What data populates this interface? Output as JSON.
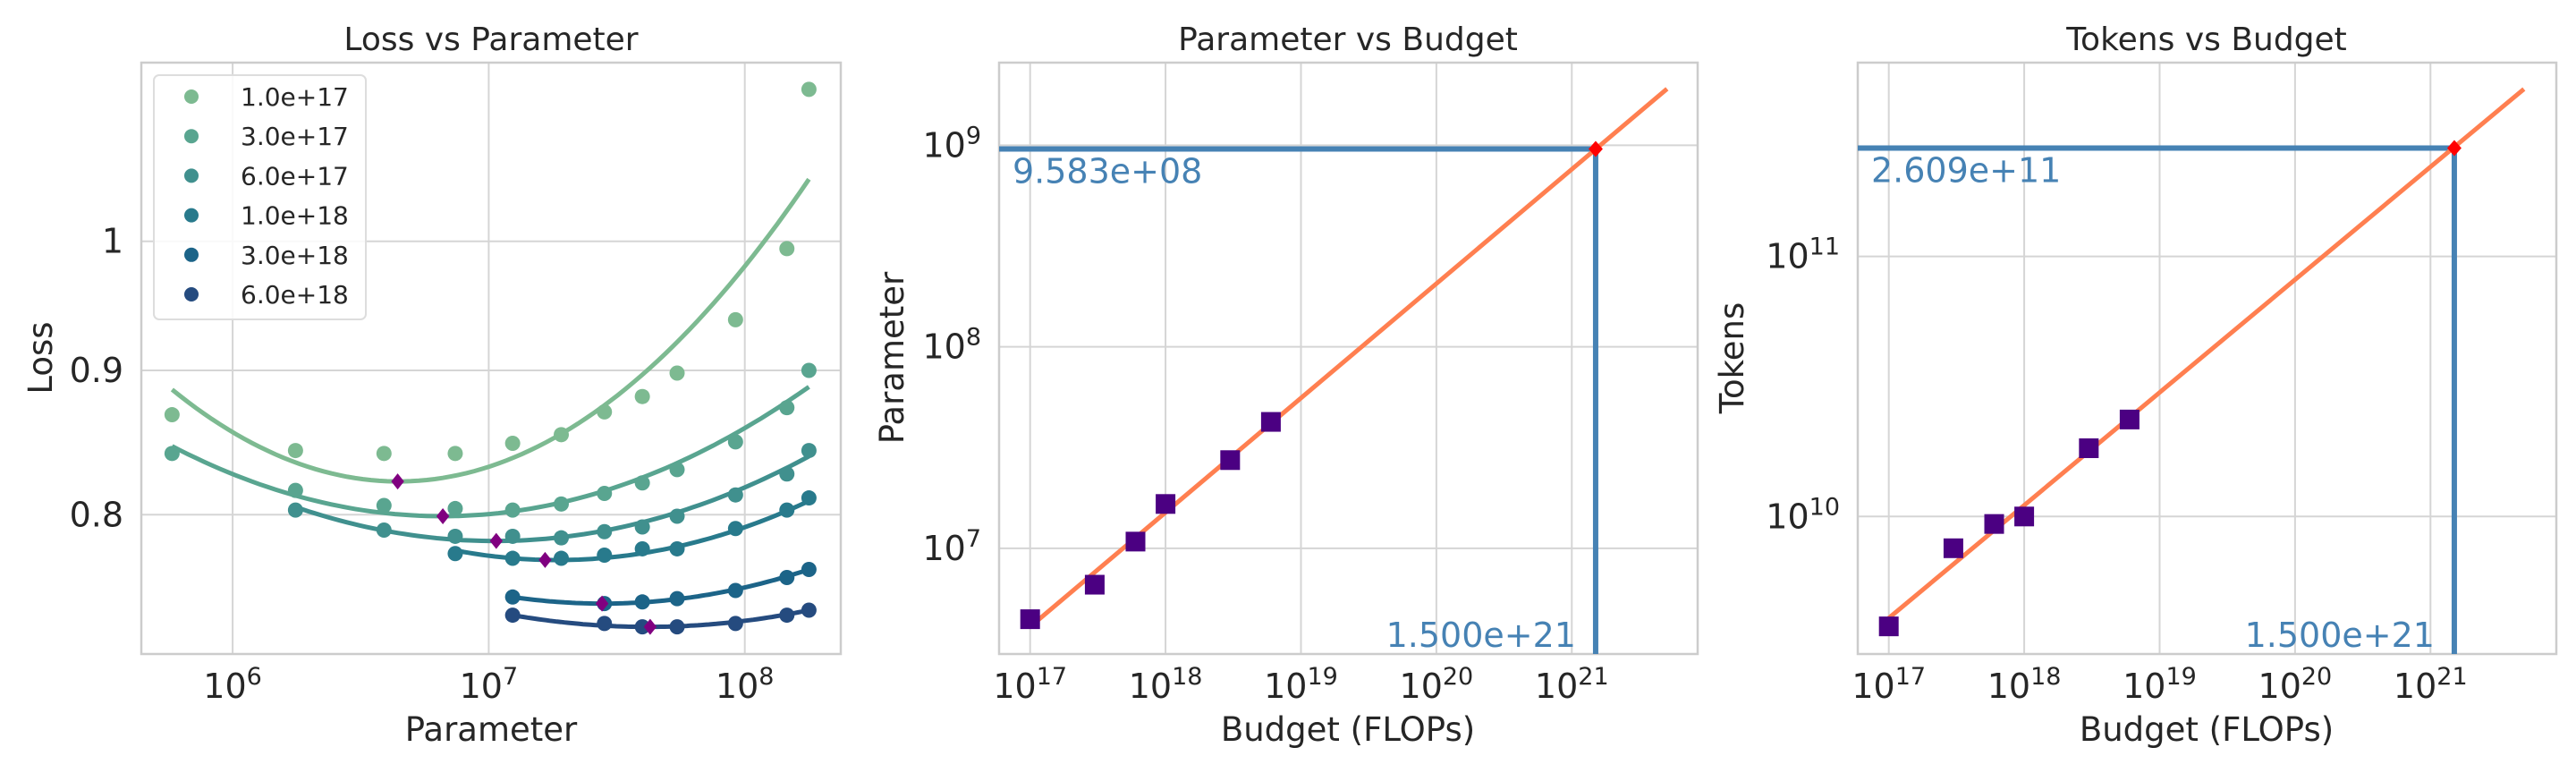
{
  "chart_data": [
    {
      "type": "scatter",
      "title": "Loss vs Parameter",
      "xlabel": "Parameter",
      "ylabel": "Loss",
      "xscale": "log",
      "yscale": "log",
      "xlim": [
        440000,
        237000000
      ],
      "ylim": [
        0.714,
        1.157
      ],
      "grid": true,
      "legend": {
        "position": "upper-left"
      },
      "xticks": [
        {
          "value": 1000000,
          "base": "10",
          "exp": "6"
        },
        {
          "value": 10000000,
          "base": "10",
          "exp": "7"
        },
        {
          "value": 100000000,
          "base": "10",
          "exp": "8"
        }
      ],
      "yticks": [
        {
          "value": 0.8,
          "label": "0.8"
        },
        {
          "value": 0.9,
          "label": "0.9"
        },
        {
          "value": 1.0,
          "label": "1"
        }
      ],
      "series": [
        {
          "name": "1.0e+17",
          "color": "#7dba91",
          "x": [
            580000,
            1760000,
            3900000,
            7400000,
            12400000,
            19200000,
            28300000,
            39800000,
            54400000,
            92000000,
            146000000,
            178000000
          ],
          "y": [
            0.868,
            0.843,
            0.841,
            0.841,
            0.848,
            0.854,
            0.87,
            0.881,
            0.898,
            0.938,
            0.994,
            1.132
          ],
          "fit": {
            "x": [
              580000,
              4410000,
              178000000
            ],
            "y": [
              0.886,
              0.822,
              1.052
            ]
          }
        },
        {
          "name": "3.0e+17",
          "color": "#59a590",
          "x": [
            580000,
            1760000,
            3900000,
            7400000,
            12400000,
            19200000,
            28300000,
            39800000,
            54400000,
            92000000,
            146000000,
            178000000
          ],
          "y": [
            0.841,
            0.816,
            0.806,
            0.804,
            0.803,
            0.807,
            0.814,
            0.821,
            0.83,
            0.849,
            0.873,
            0.9
          ],
          "fit": {
            "x": [
              580000,
              6620000,
              178000000
            ],
            "y": [
              0.846,
              0.799,
              0.888
            ]
          }
        },
        {
          "name": "6.0e+17",
          "color": "#40908e",
          "x": [
            1760000,
            3900000,
            7400000,
            12400000,
            19200000,
            28300000,
            39800000,
            54400000,
            92000000,
            146000000,
            178000000
          ],
          "y": [
            0.803,
            0.79,
            0.786,
            0.786,
            0.785,
            0.789,
            0.792,
            0.799,
            0.813,
            0.827,
            0.843
          ],
          "fit": {
            "x": [
              1760000,
              10700000,
              178000000
            ],
            "y": [
              0.805,
              0.783,
              0.839
            ]
          }
        },
        {
          "name": "1.0e+18",
          "color": "#287a8c",
          "x": [
            7400000,
            12400000,
            19200000,
            28300000,
            39800000,
            54400000,
            92000000,
            146000000,
            178000000
          ],
          "y": [
            0.775,
            0.772,
            0.772,
            0.774,
            0.778,
            0.778,
            0.791,
            0.803,
            0.811
          ],
          "fit": {
            "x": [
              7400000,
              16600000,
              178000000
            ],
            "y": [
              0.777,
              0.771,
              0.809
            ]
          }
        },
        {
          "name": "3.0e+18",
          "color": "#1c6488",
          "x": [
            12400000,
            28300000,
            39800000,
            54400000,
            92000000,
            146000000,
            178000000
          ],
          "y": [
            0.748,
            0.744,
            0.745,
            0.747,
            0.752,
            0.76,
            0.765
          ],
          "fit": {
            "x": [
              12400000,
              27700000,
              178000000
            ],
            "y": [
              0.748,
              0.744,
              0.765
            ]
          }
        },
        {
          "name": "6.0e+18",
          "color": "#254b7f",
          "x": [
            12400000,
            28300000,
            39800000,
            54400000,
            92000000,
            146000000,
            178000000
          ],
          "y": [
            0.737,
            0.732,
            0.73,
            0.73,
            0.732,
            0.737,
            0.74
          ],
          "fit": {
            "x": [
              12400000,
              42700000,
              178000000
            ],
            "y": [
              0.737,
              0.73,
              0.74
            ]
          }
        }
      ],
      "minima": {
        "color": "#800080",
        "x": [
          4410000,
          6620000,
          10700000,
          16600000,
          27700000,
          42700000
        ],
        "y": [
          0.822,
          0.799,
          0.783,
          0.771,
          0.744,
          0.73
        ]
      }
    },
    {
      "type": "scatter",
      "title": "Parameter vs Budget",
      "xlabel": "Budget (FLOPs)",
      "ylabel": "Parameter",
      "xscale": "log",
      "yscale": "log",
      "xlim": [
        5.9e+16,
        8.5e+21
      ],
      "ylim": [
        2990000,
        2570000000
      ],
      "grid": true,
      "xticks": [
        {
          "value": 1e+17,
          "base": "10",
          "exp": "17"
        },
        {
          "value": 1e+18,
          "base": "10",
          "exp": "18"
        },
        {
          "value": 1e+19,
          "base": "10",
          "exp": "19"
        },
        {
          "value": 1e+20,
          "base": "10",
          "exp": "20"
        },
        {
          "value": 1e+21,
          "base": "10",
          "exp": "21"
        }
      ],
      "yticks": [
        {
          "value": 10000000,
          "base": "10",
          "exp": "7"
        },
        {
          "value": 100000000,
          "base": "10",
          "exp": "8"
        },
        {
          "value": 1000000000,
          "base": "10",
          "exp": "9"
        }
      ],
      "points": {
        "color": "#4b0082",
        "x": [
          1e+17,
          3e+17,
          6e+17,
          1e+18,
          3e+18,
          6e+18
        ],
        "y": [
          4450000,
          6600000,
          10800000,
          16600000,
          27400000,
          42400000
        ]
      },
      "fit": {
        "color": "#ff7f50",
        "x": [
          1e+17,
          5.05e+21
        ],
        "y": [
          4080000,
          1905000000
        ]
      },
      "prediction": {
        "color": "#4682b4",
        "marker_color": "#ff0000",
        "x": 1.5e+21,
        "y": 958300000,
        "x_label": "1.500e+21",
        "y_label": "9.583e+08"
      }
    },
    {
      "type": "scatter",
      "title": "Tokens vs Budget",
      "xlabel": "Budget (FLOPs)",
      "ylabel": "Tokens",
      "xscale": "log",
      "yscale": "log",
      "xlim": [
        5.9e+16,
        8.5e+21
      ],
      "ylim": [
        2960000000,
        556000000000
      ],
      "grid": true,
      "xticks": [
        {
          "value": 1e+17,
          "base": "10",
          "exp": "17"
        },
        {
          "value": 1e+18,
          "base": "10",
          "exp": "18"
        },
        {
          "value": 1e+19,
          "base": "10",
          "exp": "19"
        },
        {
          "value": 1e+20,
          "base": "10",
          "exp": "20"
        },
        {
          "value": 1e+21,
          "base": "10",
          "exp": "21"
        }
      ],
      "yticks": [
        {
          "value": 10000000000,
          "base": "10",
          "exp": "10"
        },
        {
          "value": 100000000000,
          "base": "10",
          "exp": "11"
        }
      ],
      "points": {
        "color": "#4b0082",
        "x": [
          1e+17,
          3e+17,
          6e+17,
          1e+18,
          3e+18,
          6e+18
        ],
        "y": [
          3780000000,
          7550000000,
          9360000000,
          10000000000,
          18300000000,
          23600000000
        ]
      },
      "fit": {
        "color": "#ff7f50",
        "x": [
          1e+17,
          4.9e+21
        ],
        "y": [
          4070000000,
          440000000000
        ]
      },
      "prediction": {
        "color": "#4682b4",
        "marker_color": "#ff0000",
        "x": 1.5e+21,
        "y": 260900000000,
        "x_label": "1.500e+21",
        "y_label": "2.609e+11"
      }
    }
  ]
}
